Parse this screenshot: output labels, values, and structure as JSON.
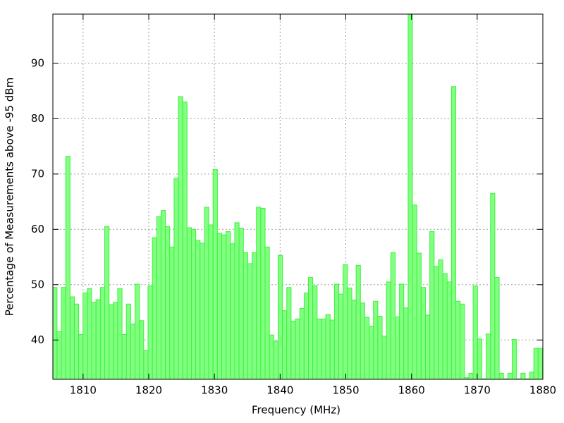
{
  "chart_data": {
    "type": "bar",
    "xlabel": "Frequency (MHz)",
    "ylabel": "Percentage of Measurements above -95 dBm",
    "color": "#80ff80",
    "edgecolor": "#40f040",
    "grid": true,
    "xlim": [
      1805.4,
      1880
    ],
    "ylim": [
      32.9,
      98.9
    ],
    "xticks": [
      1810,
      1820,
      1830,
      1840,
      1850,
      1860,
      1870,
      1880
    ],
    "yticks": [
      40,
      50,
      60,
      70,
      80,
      90
    ],
    "x": [
      1805.7,
      1806.36,
      1807.02,
      1807.68,
      1808.34,
      1809.0,
      1809.66,
      1810.32,
      1810.98,
      1811.64,
      1812.3,
      1812.96,
      1813.62,
      1814.28,
      1814.94,
      1815.6,
      1816.26,
      1816.92,
      1817.58,
      1818.24,
      1818.9,
      1819.56,
      1820.22,
      1820.88,
      1821.54,
      1822.2,
      1822.86,
      1823.52,
      1824.18,
      1824.84,
      1825.5,
      1826.16,
      1826.82,
      1827.48,
      1828.14,
      1828.8,
      1829.46,
      1830.12,
      1830.78,
      1831.44,
      1832.1,
      1832.76,
      1833.42,
      1834.08,
      1834.74,
      1835.4,
      1836.06,
      1836.72,
      1837.38,
      1838.04,
      1838.7,
      1839.36,
      1840.02,
      1840.68,
      1841.34,
      1842.0,
      1842.66,
      1843.32,
      1843.98,
      1844.64,
      1845.3,
      1845.96,
      1846.62,
      1847.28,
      1847.94,
      1848.6,
      1849.26,
      1849.92,
      1850.58,
      1851.24,
      1851.9,
      1852.56,
      1853.22,
      1853.88,
      1854.54,
      1855.2,
      1855.86,
      1856.52,
      1857.18,
      1857.84,
      1858.5,
      1859.16,
      1859.82,
      1860.48,
      1861.14,
      1861.8,
      1862.46,
      1863.12,
      1863.78,
      1864.44,
      1865.1,
      1865.76,
      1866.42,
      1867.08,
      1867.74,
      1868.4,
      1869.06,
      1869.72,
      1870.38,
      1871.04,
      1871.7,
      1872.36,
      1873.02,
      1873.68,
      1874.34,
      1875.0,
      1875.66,
      1876.32,
      1876.98,
      1877.64,
      1878.3,
      1878.96,
      1879.62
    ],
    "values": [
      49.5,
      41.5,
      49.5,
      73.2,
      47.8,
      46.5,
      41,
      48.5,
      49.3,
      46.8,
      47.3,
      49.5,
      60.5,
      46.4,
      46.8,
      49.3,
      41,
      46.5,
      42.9,
      50.1,
      43.5,
      38.1,
      49.8,
      58.5,
      62.3,
      63.4,
      60.5,
      56.8,
      69.2,
      84,
      83,
      60.3,
      60,
      58,
      57.5,
      64,
      60.8,
      70.8,
      59.3,
      59,
      59.6,
      57.4,
      61.2,
      60.2,
      55.8,
      53.8,
      55.8,
      64,
      63.8,
      56.8,
      40.9,
      39.8,
      55.3,
      45.3,
      49.5,
      43.4,
      43.8,
      45.7,
      48.5,
      51.3,
      49.8,
      43.8,
      43.8,
      44.6,
      43.6,
      50.1,
      48.3,
      53.6,
      49.4,
      47.2,
      53.5,
      46.7,
      44.1,
      42.5,
      47,
      44.3,
      40.7,
      50.5,
      55.8,
      44.2,
      50.1,
      45.8,
      98.9,
      64.4,
      55.7,
      49.5,
      44.5,
      59.6,
      53.3,
      54.5,
      52,
      50.5,
      85.8,
      47,
      46.5,
      33.2,
      34,
      49.8,
      40.2,
      33,
      41.1,
      66.5,
      51.3,
      34,
      33,
      34,
      40.1,
      33,
      34,
      33,
      34.2,
      38.5,
      38.5
    ]
  }
}
